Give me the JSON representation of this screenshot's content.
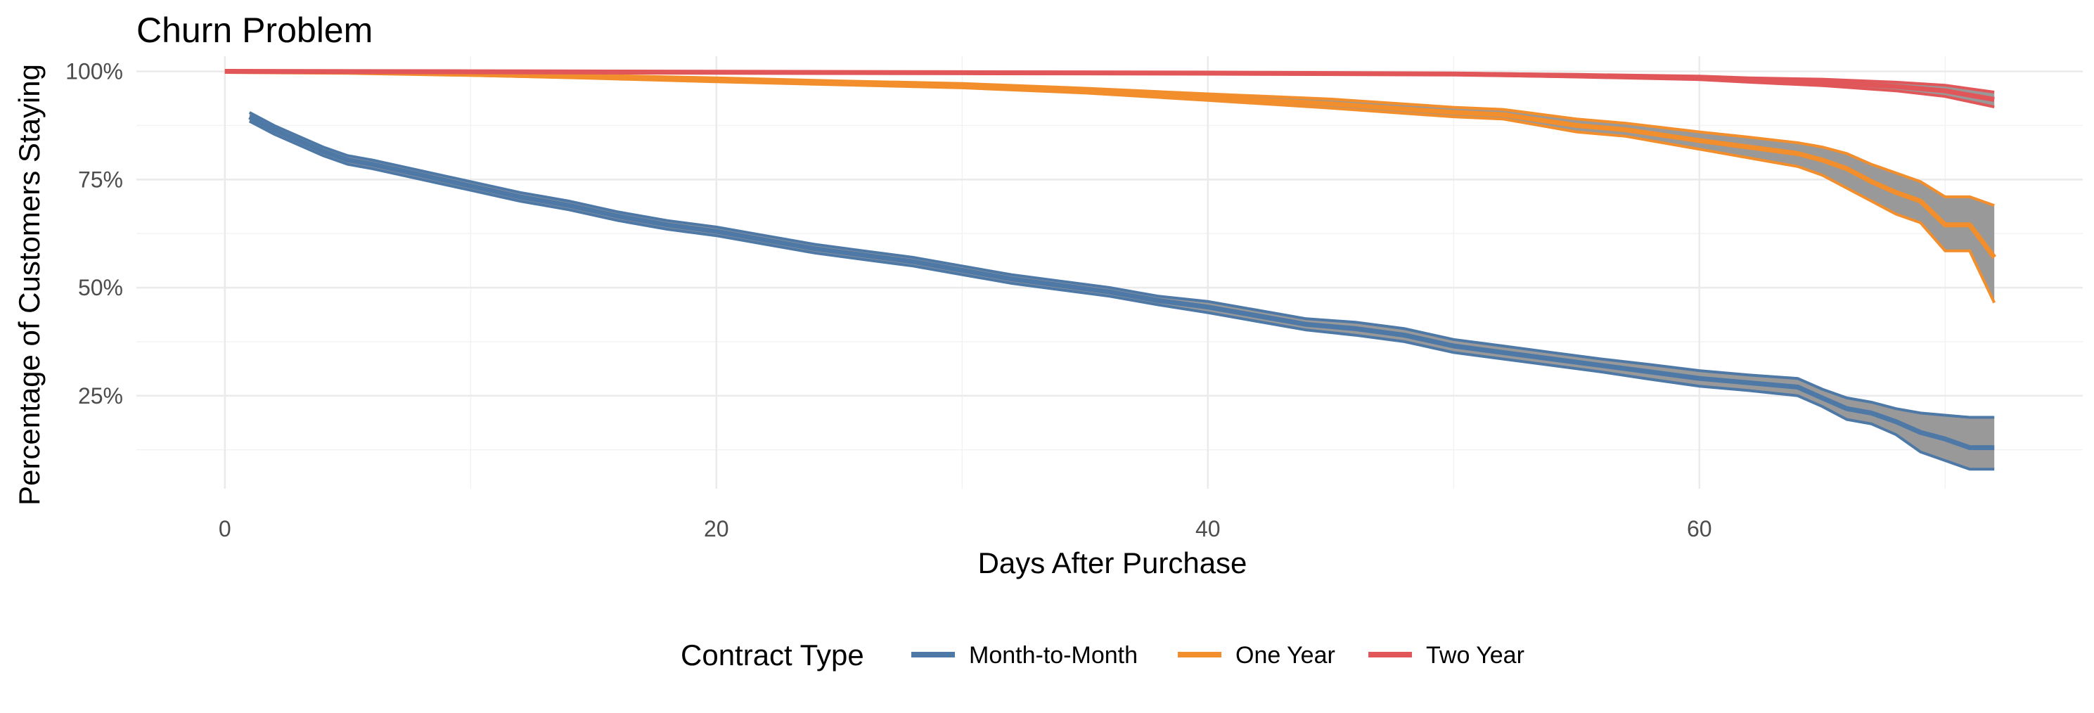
{
  "chart_data": {
    "type": "line",
    "title": "Churn Problem",
    "xlabel": "Days After Purchase",
    "ylabel": "Percentage of Customers Staying",
    "xlim": [
      -3.6,
      75.6
    ],
    "ylim": [
      0.035,
      1.035
    ],
    "x_ticks": [
      0,
      20,
      40,
      60
    ],
    "x_tick_labels": [
      "0",
      "20",
      "40",
      "60"
    ],
    "y_ticks": [
      0.25,
      0.5,
      0.75,
      1.0
    ],
    "y_tick_labels": [
      "25%",
      "50%",
      "75%",
      "100%"
    ],
    "grid": true,
    "confidence_band_color": "#999999",
    "legend": {
      "title": "Contract Type",
      "position": "bottom"
    },
    "series": [
      {
        "name": "Month-to-Month",
        "color": "#4E79A7",
        "x": [
          1,
          2,
          3,
          4,
          5,
          6,
          8,
          10,
          12,
          14,
          16,
          18,
          20,
          22,
          24,
          26,
          28,
          30,
          32,
          34,
          36,
          38,
          40,
          42,
          44,
          46,
          48,
          50,
          52,
          54,
          56,
          58,
          60,
          62,
          64,
          65,
          66,
          67,
          68,
          69,
          70,
          71,
          72
        ],
        "y": [
          0.895,
          0.865,
          0.84,
          0.815,
          0.795,
          0.785,
          0.76,
          0.735,
          0.71,
          0.69,
          0.665,
          0.645,
          0.63,
          0.61,
          0.59,
          0.575,
          0.56,
          0.54,
          0.52,
          0.505,
          0.49,
          0.47,
          0.455,
          0.435,
          0.415,
          0.405,
          0.39,
          0.365,
          0.35,
          0.335,
          0.32,
          0.305,
          0.29,
          0.28,
          0.27,
          0.245,
          0.22,
          0.21,
          0.19,
          0.165,
          0.15,
          0.13,
          0.13
        ],
        "lower": [
          0.885,
          0.855,
          0.83,
          0.805,
          0.785,
          0.775,
          0.75,
          0.725,
          0.7,
          0.68,
          0.655,
          0.635,
          0.62,
          0.6,
          0.58,
          0.565,
          0.55,
          0.53,
          0.51,
          0.495,
          0.48,
          0.46,
          0.442,
          0.422,
          0.402,
          0.39,
          0.375,
          0.35,
          0.335,
          0.32,
          0.305,
          0.288,
          0.272,
          0.262,
          0.25,
          0.225,
          0.195,
          0.185,
          0.16,
          0.12,
          0.1,
          0.08,
          0.08
        ],
        "upper": [
          0.905,
          0.875,
          0.85,
          0.825,
          0.805,
          0.795,
          0.77,
          0.745,
          0.72,
          0.7,
          0.675,
          0.655,
          0.64,
          0.62,
          0.6,
          0.585,
          0.57,
          0.55,
          0.53,
          0.515,
          0.5,
          0.48,
          0.468,
          0.448,
          0.428,
          0.42,
          0.405,
          0.38,
          0.365,
          0.35,
          0.335,
          0.322,
          0.308,
          0.298,
          0.29,
          0.265,
          0.245,
          0.235,
          0.22,
          0.21,
          0.205,
          0.2,
          0.2
        ]
      },
      {
        "name": "One Year",
        "color": "#F28E2B",
        "x": [
          0,
          5,
          10,
          15,
          20,
          25,
          30,
          35,
          40,
          45,
          50,
          52,
          55,
          57,
          60,
          62,
          64,
          65,
          66,
          67,
          68,
          69,
          70,
          71,
          72
        ],
        "y": [
          1.0,
          0.998,
          0.993,
          0.987,
          0.98,
          0.973,
          0.967,
          0.955,
          0.94,
          0.925,
          0.905,
          0.9,
          0.875,
          0.865,
          0.84,
          0.825,
          0.81,
          0.795,
          0.775,
          0.745,
          0.72,
          0.7,
          0.645,
          0.645,
          0.57
        ],
        "lower": [
          1.0,
          0.997,
          0.991,
          0.984,
          0.976,
          0.969,
          0.962,
          0.95,
          0.933,
          0.915,
          0.895,
          0.89,
          0.86,
          0.85,
          0.82,
          0.8,
          0.78,
          0.76,
          0.73,
          0.7,
          0.67,
          0.65,
          0.585,
          0.585,
          0.465
        ],
        "upper": [
          1.0,
          0.999,
          0.996,
          0.991,
          0.985,
          0.978,
          0.972,
          0.961,
          0.948,
          0.936,
          0.917,
          0.912,
          0.89,
          0.88,
          0.86,
          0.848,
          0.835,
          0.825,
          0.81,
          0.785,
          0.765,
          0.745,
          0.71,
          0.71,
          0.69
        ]
      },
      {
        "name": "Two Year",
        "color": "#E15759",
        "x": [
          0,
          10,
          20,
          30,
          40,
          50,
          55,
          60,
          62,
          65,
          68,
          70,
          72
        ],
        "y": [
          1.0,
          0.999,
          0.998,
          0.997,
          0.996,
          0.994,
          0.99,
          0.985,
          0.98,
          0.975,
          0.965,
          0.955,
          0.935
        ],
        "lower": [
          1.0,
          0.998,
          0.997,
          0.996,
          0.995,
          0.992,
          0.987,
          0.981,
          0.975,
          0.967,
          0.955,
          0.942,
          0.918
        ],
        "upper": [
          1.0,
          1.0,
          0.999,
          0.998,
          0.997,
          0.996,
          0.993,
          0.989,
          0.985,
          0.982,
          0.975,
          0.968,
          0.952
        ]
      }
    ]
  }
}
